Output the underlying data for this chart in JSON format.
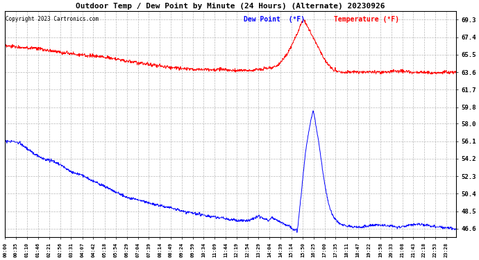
{
  "title": "Outdoor Temp / Dew Point by Minute (24 Hours) (Alternate) 20230926",
  "copyright": "Copyright 2023 Cartronics.com",
  "legend_dew": "Dew Point  (°F)",
  "legend_temp": "Temperature (°F)",
  "y_ticks": [
    46.6,
    48.5,
    50.4,
    52.3,
    54.2,
    56.1,
    58.0,
    59.8,
    61.7,
    63.6,
    65.5,
    67.4,
    69.3
  ],
  "y_min": 45.7,
  "y_max": 70.2,
  "background_color": "#ffffff",
  "plot_bg_color": "#ffffff",
  "grid_color": "#b0b0b0",
  "temp_color": "red",
  "dew_color": "blue",
  "title_color": "#000000",
  "x_labels": [
    "00:00",
    "00:35",
    "01:10",
    "01:46",
    "02:21",
    "02:56",
    "03:31",
    "04:07",
    "04:42",
    "05:18",
    "05:54",
    "06:29",
    "07:04",
    "07:39",
    "08:14",
    "08:49",
    "09:24",
    "09:59",
    "10:34",
    "11:09",
    "11:44",
    "12:19",
    "12:54",
    "13:29",
    "14:04",
    "14:39",
    "15:14",
    "15:50",
    "16:25",
    "17:00",
    "17:35",
    "18:11",
    "18:47",
    "19:22",
    "19:58",
    "20:33",
    "21:08",
    "21:43",
    "22:18",
    "22:53",
    "23:28"
  ]
}
